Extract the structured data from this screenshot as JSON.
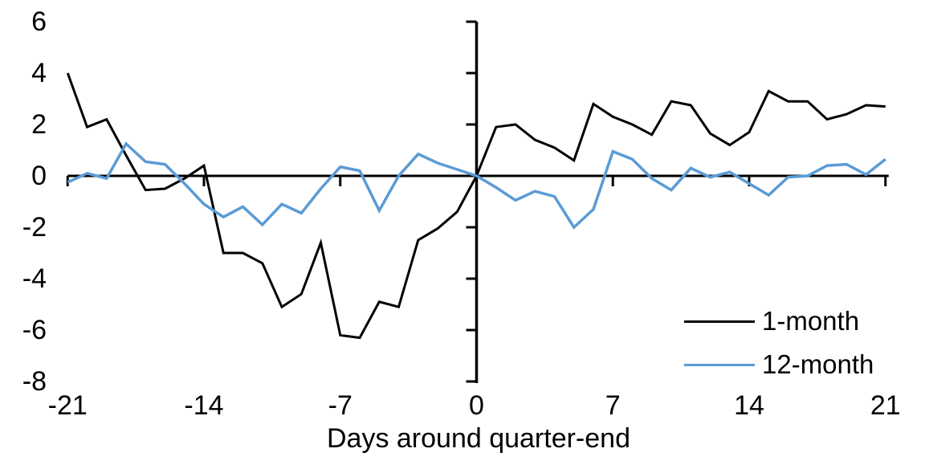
{
  "chart_data": {
    "type": "line",
    "title": "",
    "xlabel": "Days around quarter-end",
    "ylabel": "",
    "xlim": [
      -21,
      21
    ],
    "ylim": [
      -8,
      6
    ],
    "xticks": [
      -21,
      -14,
      -7,
      0,
      7,
      14,
      21
    ],
    "yticks": [
      6,
      4,
      2,
      0,
      -2,
      -4,
      -6,
      -8
    ],
    "grid": "off",
    "legend_position": "bottom-right",
    "x": [
      -21,
      -20,
      -19,
      -18,
      -17,
      -16,
      -15,
      -14,
      -13,
      -12,
      -11,
      -10,
      -9,
      -8,
      -7,
      -6,
      -5,
      -4,
      -3,
      -2,
      -1,
      0,
      1,
      2,
      3,
      4,
      5,
      6,
      7,
      8,
      9,
      10,
      11,
      12,
      13,
      14,
      15,
      16,
      17,
      18,
      19,
      20,
      21
    ],
    "series": [
      {
        "name": "1-month",
        "color": "#000000",
        "values": [
          4.0,
          1.9,
          2.2,
          0.8,
          -0.55,
          -0.5,
          -0.1,
          0.4,
          -3.0,
          -3.0,
          -3.4,
          -5.1,
          -4.6,
          -2.6,
          -6.2,
          -6.3,
          -4.9,
          -5.1,
          -2.5,
          -2.05,
          -1.4,
          0.0,
          1.9,
          2.0,
          1.4,
          1.1,
          0.6,
          2.8,
          2.3,
          2.0,
          1.6,
          2.9,
          2.75,
          1.65,
          1.2,
          1.7,
          3.3,
          2.9,
          2.9,
          2.2,
          2.4,
          2.75,
          2.7
        ]
      },
      {
        "name": "12-month",
        "color": "#5B9BD5",
        "values": [
          -0.25,
          0.1,
          -0.1,
          1.25,
          0.55,
          0.45,
          -0.3,
          -1.1,
          -1.6,
          -1.2,
          -1.9,
          -1.1,
          -1.45,
          -0.5,
          0.35,
          0.2,
          -1.35,
          0.0,
          0.85,
          0.5,
          0.25,
          0.0,
          -0.45,
          -0.95,
          -0.6,
          -0.8,
          -2.0,
          -1.3,
          0.95,
          0.65,
          -0.1,
          -0.55,
          0.3,
          -0.05,
          0.15,
          -0.3,
          -0.75,
          -0.05,
          0.0,
          0.4,
          0.45,
          0.05,
          0.65
        ]
      }
    ]
  }
}
